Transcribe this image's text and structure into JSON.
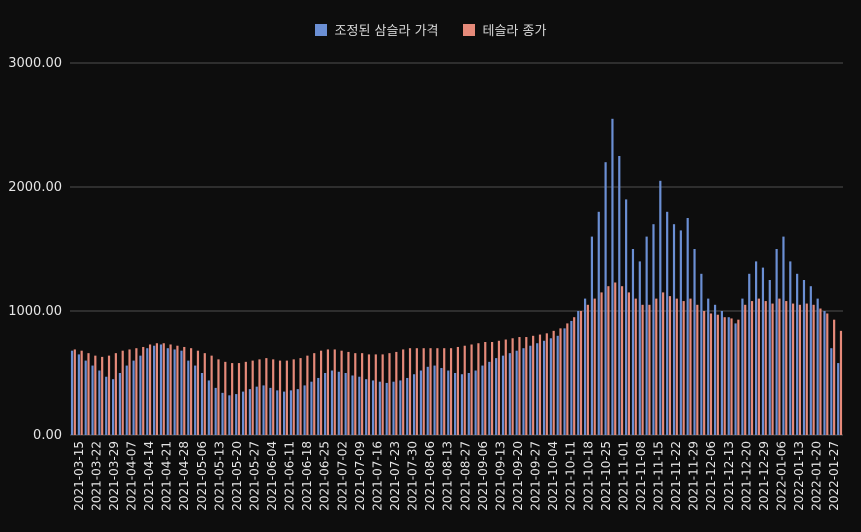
{
  "chart_data": {
    "type": "bar",
    "title": "",
    "xlabel": "",
    "ylabel": "",
    "ylim": [
      0,
      3000
    ],
    "yticks": [
      "0.00",
      "1000.00",
      "2000.00",
      "3000.00"
    ],
    "ytick_values": [
      0,
      1000,
      2000,
      3000
    ],
    "grid": true,
    "legend_position": "top-center",
    "xtick_labels": [
      "2021-03-15",
      "2021-03-22",
      "2021-03-29",
      "2021-04-07",
      "2021-04-14",
      "2021-04-21",
      "2021-04-28",
      "2021-05-06",
      "2021-05-13",
      "2021-05-20",
      "2021-05-27",
      "2021-06-04",
      "2021-06-11",
      "2021-06-18",
      "2021-06-25",
      "2021-07-02",
      "2021-07-09",
      "2021-07-16",
      "2021-07-23",
      "2021-07-30",
      "2021-08-06",
      "2021-08-13",
      "2021-08-27",
      "2021-09-06",
      "2021-09-13",
      "2021-09-20",
      "2021-09-27",
      "2021-10-04",
      "2021-10-11",
      "2021-10-18",
      "2021-10-25",
      "2021-11-01",
      "2021-11-08",
      "2021-11-15",
      "2021-11-22",
      "2021-11-29",
      "2021-12-06",
      "2021-12-13",
      "2021-12-20",
      "2021-12-29",
      "2022-01-06",
      "2022-01-13",
      "2022-01-20",
      "2022-01-27"
    ],
    "series": [
      {
        "name": "조정된 삼슬라 가격",
        "color": "#6b8fd4",
        "values": [
          680,
          650,
          600,
          560,
          520,
          470,
          450,
          500,
          560,
          600,
          640,
          700,
          720,
          730,
          700,
          690,
          680,
          600,
          560,
          500,
          440,
          380,
          340,
          320,
          330,
          350,
          370,
          390,
          400,
          380,
          360,
          350,
          360,
          370,
          400,
          430,
          460,
          500,
          520,
          510,
          500,
          480,
          470,
          450,
          440,
          430,
          420,
          430,
          440,
          460,
          490,
          520,
          550,
          560,
          540,
          520,
          500,
          490,
          500,
          520,
          560,
          590,
          620,
          640,
          660,
          680,
          700,
          720,
          740,
          760,
          780,
          800,
          860,
          920,
          1000,
          1100,
          1600,
          1800,
          2200,
          2550,
          2250,
          1900,
          1500,
          1400,
          1600,
          1700,
          2050,
          1800,
          1700,
          1650,
          1750,
          1500,
          1300,
          1100,
          1050,
          1000,
          950,
          900,
          1100,
          1300,
          1400,
          1350,
          1250,
          1500,
          1600,
          1400,
          1300,
          1250,
          1200,
          1100,
          1000,
          700,
          580
        ]
      },
      {
        "name": "테슬라 종가",
        "color": "#e68a7a",
        "values": [
          690,
          680,
          660,
          640,
          630,
          640,
          660,
          680,
          690,
          700,
          710,
          730,
          740,
          740,
          730,
          720,
          710,
          700,
          680,
          660,
          640,
          610,
          590,
          580,
          580,
          590,
          600,
          610,
          620,
          610,
          600,
          600,
          610,
          620,
          640,
          660,
          680,
          690,
          690,
          680,
          670,
          660,
          660,
          650,
          650,
          650,
          660,
          670,
          690,
          700,
          700,
          700,
          700,
          700,
          700,
          700,
          710,
          720,
          730,
          740,
          750,
          750,
          760,
          770,
          780,
          790,
          790,
          800,
          810,
          820,
          840,
          860,
          900,
          950,
          1000,
          1050,
          1100,
          1150,
          1200,
          1230,
          1200,
          1150,
          1100,
          1050,
          1050,
          1100,
          1150,
          1120,
          1100,
          1080,
          1100,
          1050,
          1000,
          980,
          970,
          950,
          940,
          930,
          1050,
          1080,
          1100,
          1080,
          1060,
          1100,
          1080,
          1060,
          1050,
          1060,
          1050,
          1020,
          980,
          930,
          840
        ]
      }
    ]
  }
}
